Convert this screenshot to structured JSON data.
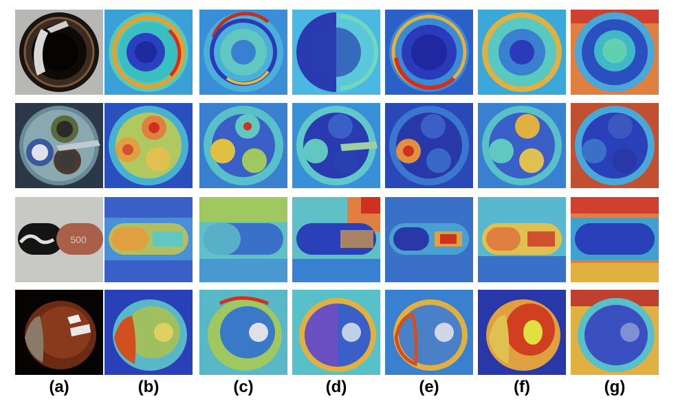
{
  "figure": {
    "columns": [
      "(a)",
      "(b)",
      "(c)",
      "(d)",
      "(e)",
      "(f)",
      "(g)"
    ],
    "rows": [
      {
        "subject": "bottle",
        "input_caption": "",
        "maps": [
          "b",
          "c",
          "d",
          "e",
          "f",
          "g"
        ]
      },
      {
        "subject": "cable",
        "input_caption": "",
        "maps": [
          "b",
          "c",
          "d",
          "e",
          "f",
          "g"
        ]
      },
      {
        "subject": "capsule",
        "input_caption": "500",
        "maps": [
          "b",
          "c",
          "d",
          "e",
          "f",
          "g"
        ]
      },
      {
        "subject": "hazelnut",
        "input_caption": "",
        "maps": [
          "b",
          "c",
          "d",
          "e",
          "f",
          "g"
        ]
      }
    ],
    "colors": {
      "jet_low": "#2020c8",
      "jet_mid": "#2fd0d0",
      "jet_high_mid": "#e8d83a",
      "jet_high": "#d02020",
      "background": "#ffffff"
    }
  }
}
